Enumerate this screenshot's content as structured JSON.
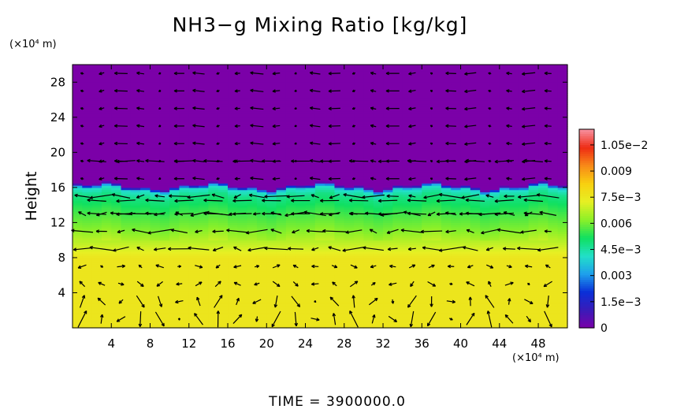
{
  "chart_data": {
    "type": "heatmap",
    "title": "NH3−g Mixing Ratio [kg/kg]",
    "ylabel": "Height",
    "y_unit": "(×10⁴ m)",
    "x_unit": "(×10⁴ m)",
    "footer": "TIME  =  3900000.0",
    "xlim": [
      0,
      51
    ],
    "ylim": [
      0,
      30
    ],
    "x_ticks": [
      4,
      8,
      12,
      16,
      20,
      24,
      28,
      32,
      36,
      40,
      44,
      48
    ],
    "y_ticks": [
      4,
      8,
      12,
      16,
      20,
      24,
      28
    ],
    "colorbar": {
      "min": 0,
      "max": 0.0114,
      "tick_values": [
        0,
        0.0015,
        0.003,
        0.0045,
        0.006,
        0.0075,
        0.009,
        0.0105
      ],
      "tick_labels": [
        "0",
        "1.5e−3",
        "0.003",
        "4.5e−3",
        "0.006",
        "7.5e−3",
        "0.009",
        "1.05e−2"
      ],
      "colors": [
        "#7b00a8",
        "#3a1bb8",
        "#0a2fd8",
        "#1ea0ec",
        "#22e0c8",
        "#10e060",
        "#8cf028",
        "#e6f024",
        "#f8d010",
        "#f88a18",
        "#ee2c14",
        "#f890a0"
      ]
    },
    "field_profile": {
      "height": [
        0,
        8,
        9,
        11,
        13,
        15,
        15.8,
        16.2,
        30
      ],
      "value": [
        0.0076,
        0.0076,
        0.0071,
        0.0062,
        0.0056,
        0.0048,
        0.004,
        0.0,
        0.0
      ]
    },
    "vector_field": {
      "x": [
        1,
        3,
        5,
        7,
        9,
        11,
        13,
        15,
        17,
        19,
        21,
        23,
        25,
        27,
        29,
        31,
        33,
        35,
        37,
        39,
        41,
        43,
        45,
        47,
        49
      ],
      "y": [
        1,
        3,
        5,
        7,
        9,
        11,
        13,
        15,
        17,
        19,
        21,
        23,
        25,
        27,
        29
      ],
      "streamer_rows": [
        13,
        14.5,
        19
      ],
      "note_colors": {
        "arrow": "#000000"
      }
    }
  }
}
